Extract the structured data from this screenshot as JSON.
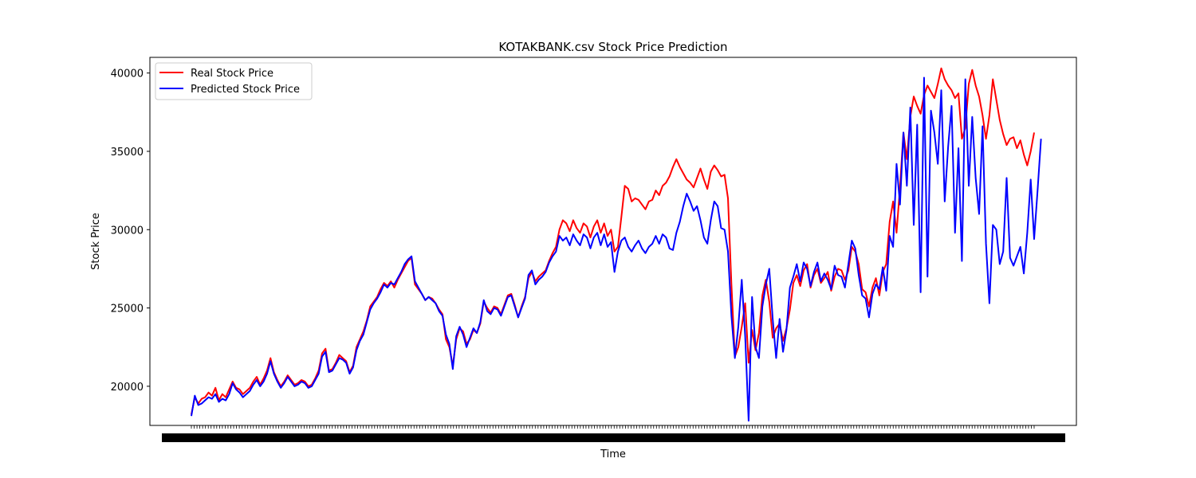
{
  "chart_data": {
    "type": "line",
    "title": "KOTAKBANK.csv Stock Price Prediction",
    "xlabel": "Time",
    "ylabel": "Stock Price",
    "ylim": [
      17500,
      41000
    ],
    "yticks": [
      20000,
      25000,
      30000,
      35000,
      40000
    ],
    "legend_position": "top-left",
    "grid": false,
    "x_tick_labels_note": "dense overlapping date labels",
    "colors": {
      "real": "#ff0000",
      "predicted": "#0000ff"
    },
    "series": [
      {
        "name": "Real Stock Price",
        "color": "#ff0000",
        "values": [
          18200,
          19300,
          18900,
          19200,
          19300,
          19600,
          19400,
          19900,
          19100,
          19500,
          19300,
          19800,
          20300,
          19900,
          19800,
          19500,
          19700,
          19900,
          20300,
          20600,
          20100,
          20500,
          21000,
          21800,
          20900,
          20400,
          20000,
          20300,
          20700,
          20400,
          20100,
          20200,
          20400,
          20300,
          20000,
          20100,
          20500,
          21000,
          22100,
          22400,
          21000,
          21100,
          21500,
          22000,
          21800,
          21600,
          20900,
          21300,
          22500,
          23000,
          23500,
          24200,
          25100,
          25400,
          25700,
          26200,
          26600,
          26400,
          26700,
          26300,
          26800,
          27200,
          27600,
          28000,
          28200,
          26500,
          26200,
          25900,
          25500,
          25700,
          25600,
          25300,
          24900,
          24600,
          23000,
          22500,
          21300,
          23000,
          23700,
          23500,
          22700,
          23000,
          23600,
          23400,
          24000,
          25400,
          25000,
          24700,
          25100,
          25000,
          24600,
          25200,
          25800,
          25900,
          25200,
          24400,
          25100,
          25700,
          26900,
          27300,
          26700,
          27000,
          27200,
          27400,
          28000,
          28500,
          28900,
          30000,
          30600,
          30400,
          29900,
          30600,
          30100,
          29800,
          30400,
          30200,
          29500,
          30200,
          30600,
          29800,
          30400,
          29600,
          30000,
          28600,
          28900,
          30800,
          32800,
          32600,
          31800,
          32000,
          31900,
          31600,
          31300,
          31800,
          31900,
          32500,
          32200,
          32800,
          33000,
          33400,
          34000,
          34500,
          34000,
          33600,
          33200,
          33000,
          32700,
          33300,
          33900,
          33200,
          32600,
          33700,
          34100,
          33800,
          33400,
          33500,
          32000,
          26500,
          21900,
          22500,
          23800,
          25300,
          21500,
          23600,
          22300,
          23400,
          25800,
          26800,
          25400,
          23100,
          23700,
          24000,
          22900,
          23700,
          24900,
          26600,
          27100,
          26400,
          27400,
          27800,
          26300,
          27100,
          27500,
          26600,
          26900,
          27300,
          26100,
          27000,
          27500,
          27400,
          26800,
          27400,
          28900,
          28600,
          27800,
          26200,
          26000,
          25100,
          26300,
          26900,
          25800,
          27300,
          27800,
          30500,
          31800,
          29800,
          32700,
          36200,
          34500,
          37200,
          38500,
          37900,
          37400,
          38600,
          39200,
          38800,
          38400,
          39300,
          40300,
          39600,
          39200,
          38900,
          38400,
          38700,
          35800,
          36500,
          39300,
          40200,
          39200,
          38500,
          37300,
          35800,
          37300,
          39600,
          38300,
          37000,
          36100,
          35400,
          35800,
          35900,
          35200,
          35700,
          34800,
          34100,
          35000,
          36200
        ]
      },
      {
        "name": "Predicted Stock Price",
        "color": "#0000ff",
        "values": [
          18100,
          19400,
          18800,
          18900,
          19100,
          19300,
          19200,
          19500,
          19000,
          19200,
          19100,
          19500,
          20200,
          19800,
          19600,
          19300,
          19500,
          19700,
          20100,
          20400,
          20000,
          20300,
          20800,
          21600,
          20800,
          20300,
          19900,
          20200,
          20600,
          20300,
          20000,
          20100,
          20300,
          20200,
          19900,
          20000,
          20400,
          20800,
          21900,
          22200,
          20900,
          21000,
          21400,
          21800,
          21700,
          21500,
          20800,
          21200,
          22300,
          22900,
          23300,
          24100,
          24900,
          25300,
          25600,
          26000,
          26500,
          26300,
          26600,
          26500,
          26900,
          27300,
          27800,
          28100,
          28300,
          26700,
          26300,
          25900,
          25500,
          25700,
          25500,
          25300,
          24800,
          24500,
          23300,
          22700,
          21100,
          23200,
          23800,
          23300,
          22500,
          23100,
          23700,
          23400,
          24100,
          25500,
          24800,
          24600,
          25000,
          24900,
          24500,
          25100,
          25700,
          25800,
          25100,
          24400,
          25000,
          25600,
          27100,
          27400,
          26500,
          26800,
          27000,
          27300,
          27900,
          28300,
          28600,
          29600,
          29300,
          29500,
          29000,
          29700,
          29300,
          29000,
          29700,
          29500,
          28800,
          29500,
          29800,
          29000,
          29700,
          28900,
          29200,
          27300,
          28600,
          29300,
          29500,
          28900,
          28600,
          29000,
          29300,
          28800,
          28500,
          28900,
          29100,
          29600,
          29100,
          29700,
          29500,
          28800,
          28700,
          29800,
          30500,
          31500,
          32300,
          31800,
          31200,
          31500,
          30600,
          29500,
          29100,
          30600,
          31800,
          31500,
          30100,
          30000,
          28600,
          24500,
          21800,
          23800,
          26800,
          23200,
          17800,
          25700,
          22500,
          21800,
          25100,
          26500,
          27500,
          24300,
          21800,
          24300,
          22200,
          23600,
          26300,
          27000,
          27800,
          26700,
          27900,
          27500,
          26400,
          27300,
          27900,
          26700,
          27200,
          26800,
          26200,
          27700,
          27100,
          27000,
          26300,
          27800,
          29300,
          28800,
          27100,
          25800,
          25600,
          24400,
          25900,
          26500,
          26200,
          27600,
          26100,
          29600,
          28900,
          34200,
          31600,
          36200,
          32800,
          37800,
          30300,
          36700,
          26000,
          39700,
          27000,
          37600,
          36200,
          34200,
          38900,
          31800,
          35300,
          37900,
          29800,
          35200,
          28000,
          39600,
          32800,
          37200,
          33300,
          31000,
          36600,
          29100,
          25300,
          30300,
          30000,
          27800,
          28600,
          33300,
          28200,
          27700,
          28300,
          28900,
          27200,
          29800,
          33200,
          29400,
          32500,
          35800
        ]
      }
    ]
  }
}
